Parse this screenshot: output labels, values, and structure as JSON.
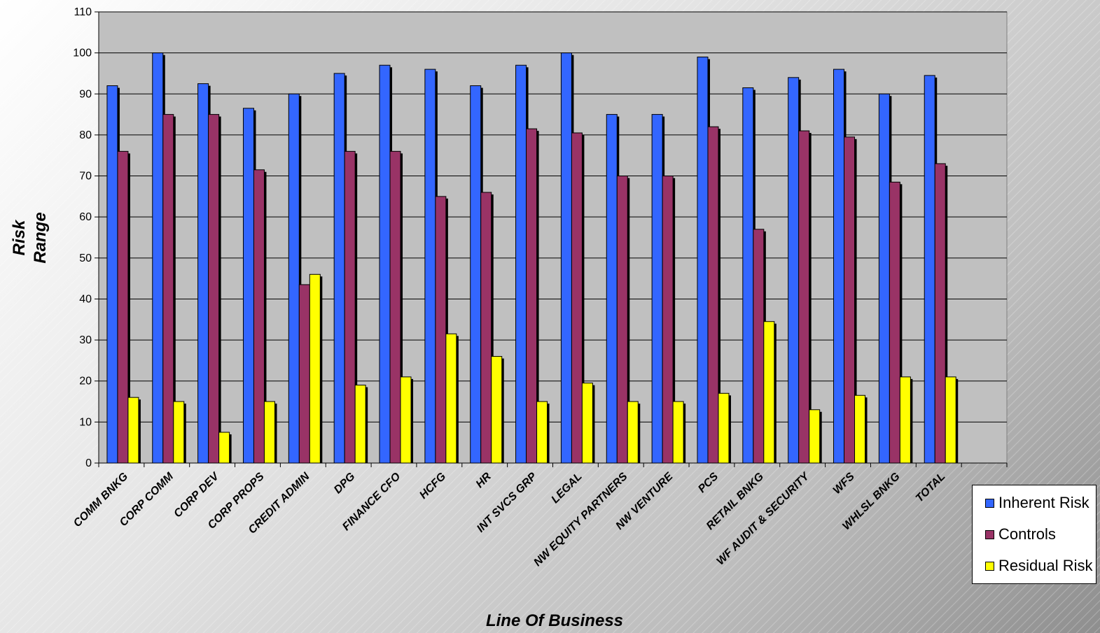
{
  "chart_data": {
    "type": "bar",
    "title": "",
    "xlabel": "Line Of Business",
    "ylabel_lines": [
      "Risk",
      "Range"
    ],
    "ylim": [
      0,
      110
    ],
    "yticks": [
      0,
      10,
      20,
      30,
      40,
      50,
      60,
      70,
      80,
      90,
      100,
      110
    ],
    "grid": true,
    "legend_position": "bottom-right",
    "categories": [
      "COMM BNKG",
      "CORP COMM",
      "CORP DEV",
      "CORP PROPS",
      "CREDIT ADMIN",
      "DPG",
      "FINANCE CFO",
      "HCFG",
      "HR",
      "INT SVCS GRP",
      "LEGAL",
      "NW EQUITY PARTNERS",
      "NW VENTURE",
      "PCS",
      "RETAIL BNKG",
      "WF AUDIT & SECURITY",
      "WFS",
      "WHLSL BNKG",
      "TOTAL"
    ],
    "series": [
      {
        "name": "Inherent Risk",
        "color": "#3366ff",
        "values": [
          92,
          100,
          92.5,
          86.5,
          90,
          95,
          97,
          96,
          92,
          97,
          100,
          85,
          85,
          99,
          91.5,
          94,
          96,
          90,
          94.5
        ]
      },
      {
        "name": "Controls",
        "color": "#993366",
        "values": [
          76,
          85,
          85,
          71.5,
          43.5,
          76,
          76,
          65,
          66,
          81.5,
          80.5,
          70,
          70,
          82,
          57,
          81,
          79.5,
          68.5,
          73
        ]
      },
      {
        "name": "Residual Risk",
        "color": "#ffff00",
        "values": [
          16,
          15,
          7.5,
          15,
          46,
          19,
          21,
          31.5,
          26,
          15,
          19.5,
          15,
          15,
          17,
          34.5,
          13,
          16.5,
          21,
          21
        ]
      }
    ]
  }
}
